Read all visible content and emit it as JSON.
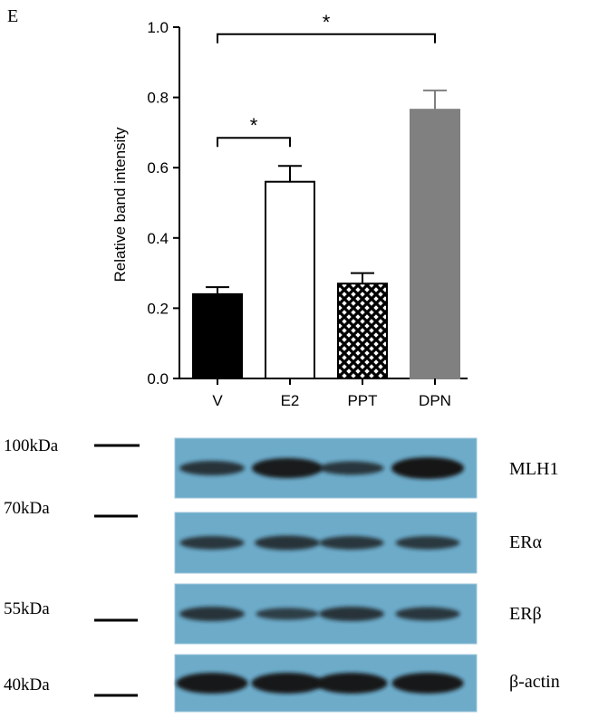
{
  "panel_label": "E",
  "chart_data": {
    "type": "bar",
    "categories": [
      "V",
      "E2",
      "PPT",
      "DPN"
    ],
    "values": [
      0.24,
      0.56,
      0.27,
      0.765
    ],
    "errors": [
      0.02,
      0.045,
      0.03,
      0.055
    ],
    "title": "",
    "xlabel": "",
    "ylabel": "Relative band intensity",
    "ylim": [
      0,
      1.0
    ],
    "yticks": [
      "0.0",
      "0.2",
      "0.4",
      "0.6",
      "0.8",
      "1.0"
    ],
    "bar_fills": [
      "#000000",
      "#ffffff",
      "crosshatch",
      "#808080"
    ],
    "grid": false,
    "significance": [
      {
        "from": "V",
        "to": "E2",
        "label": "*"
      },
      {
        "from": "V",
        "to": "DPN",
        "label": "*"
      }
    ]
  },
  "blot": {
    "markers": [
      "100kDa",
      "70kDa",
      "55kDa",
      "40kDa"
    ],
    "rows": [
      {
        "label": "MLH1",
        "intensities": [
          0.55,
          0.9,
          0.5,
          1.0
        ]
      },
      {
        "label": "ERα",
        "intensities": [
          0.5,
          0.55,
          0.5,
          0.48
        ]
      },
      {
        "label": "ERβ",
        "intensities": [
          0.55,
          0.4,
          0.55,
          0.5
        ]
      },
      {
        "label": "β-actin",
        "intensities": [
          0.95,
          0.95,
          0.95,
          0.95
        ]
      }
    ],
    "background_color": "#6dabc9",
    "band_color": "#141414"
  }
}
